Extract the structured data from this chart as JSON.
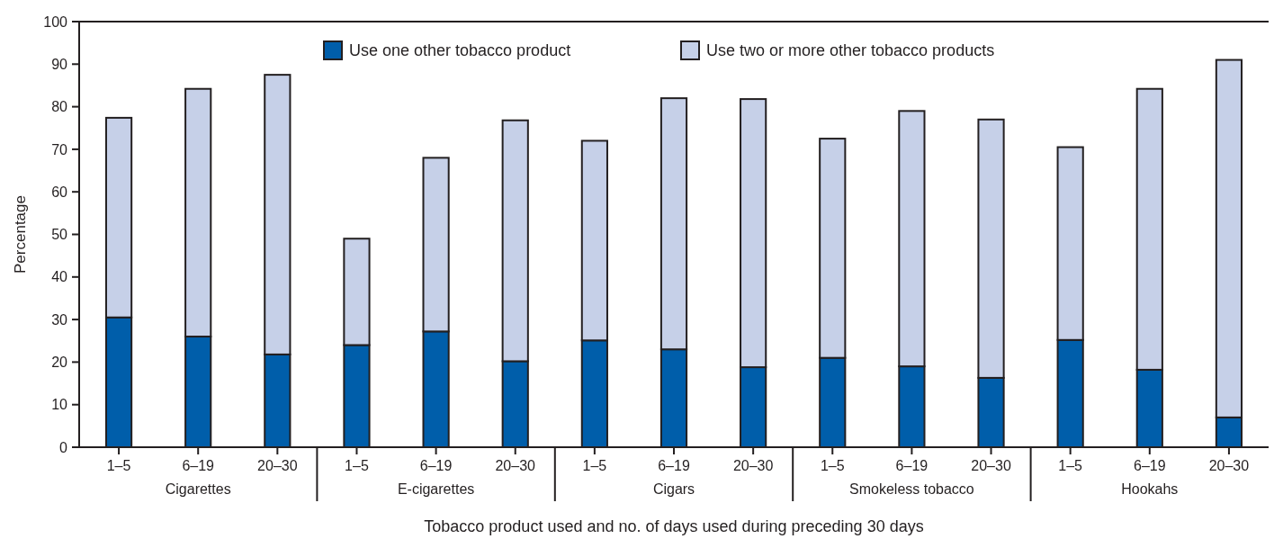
{
  "chart_data": {
    "type": "bar",
    "stacked": true,
    "xlabel": "Tobacco product used and no. of days used during preceding 30 days",
    "ylabel": "Percentage",
    "categories": [
      "1–5",
      "6–19",
      "20–30",
      "1–5",
      "6–19",
      "20–30",
      "1–5",
      "6–19",
      "20–30",
      "1–5",
      "6–19",
      "20–30",
      "1–5",
      "6–19",
      "20–30"
    ],
    "annotations": [
      "Cigarettes",
      "E-cigarettes",
      "Cigars",
      "Smokeless tobacco",
      "Hookahs"
    ],
    "series": [
      {
        "name": "Use one other tobacco product",
        "color": "#005eaa",
        "values": [
          30.5,
          26,
          21.8,
          24,
          27.2,
          20.2,
          25.1,
          23,
          18.8,
          21,
          19,
          16.3,
          25.2,
          18.2,
          7
        ]
      },
      {
        "name": "Use two or more other tobacco products",
        "color": "#c6d0e8",
        "values": [
          46.9,
          58.2,
          65.7,
          25,
          40.8,
          56.6,
          46.9,
          59,
          63,
          51.5,
          60,
          60.7,
          45.3,
          66,
          84
        ]
      }
    ],
    "ylim": [
      0,
      100
    ],
    "yticks": [
      0,
      10,
      20,
      30,
      40,
      50,
      60,
      70,
      80,
      90,
      100
    ],
    "legend": "top"
  }
}
